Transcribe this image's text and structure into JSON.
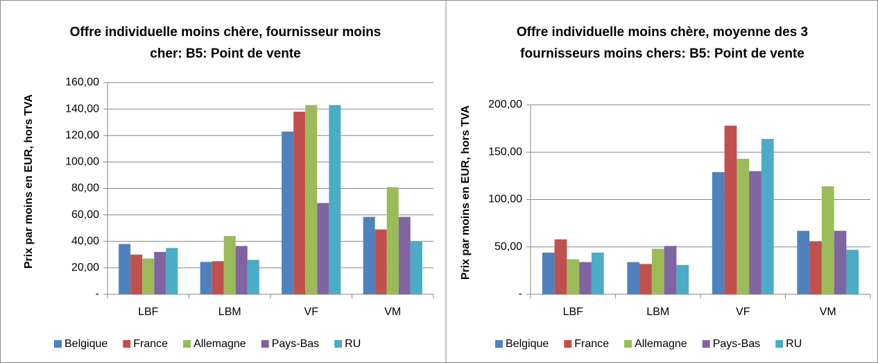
{
  "chart_data": [
    {
      "type": "bar",
      "title": "Offre individuelle moins chère, fournisseur moins cher: B5: Point de vente",
      "y_label": "Prix par moins en EUR, hors TVA",
      "categories": [
        "LBF",
        "LBM",
        "VF",
        "VM"
      ],
      "series": [
        {
          "name": "Belgique",
          "color": "#4f81bd",
          "values": [
            38,
            24.5,
            123,
            58.5
          ]
        },
        {
          "name": "France",
          "color": "#c0504d",
          "values": [
            30,
            25,
            138,
            49
          ]
        },
        {
          "name": "Allemagne",
          "color": "#9bbb59",
          "values": [
            27,
            44,
            143,
            81
          ]
        },
        {
          "name": "Pays-Bas",
          "color": "#8064a2",
          "values": [
            32,
            36.5,
            69,
            58.5
          ]
        },
        {
          "name": "RU",
          "color": "#4bacc6",
          "values": [
            35,
            26,
            143,
            40
          ]
        }
      ],
      "ylim": [
        0,
        160
      ],
      "yticks": [
        {
          "value": 0,
          "label": "-"
        },
        {
          "value": 20,
          "label": "20,00"
        },
        {
          "value": 40,
          "label": "40,00"
        },
        {
          "value": 60,
          "label": "60,00"
        },
        {
          "value": 80,
          "label": "80,00"
        },
        {
          "value": 100,
          "label": "100,00"
        },
        {
          "value": 120,
          "label": "120,00"
        },
        {
          "value": 140,
          "label": "140,00"
        },
        {
          "value": 160,
          "label": "160,00"
        }
      ],
      "grid": true,
      "legend": "bottom"
    },
    {
      "type": "bar",
      "title": "Offre individuelle moins chère, moyenne des 3 fournisseurs moins chers: B5: Point de vente",
      "y_label": "Prix par moins en EUR, hors TVA",
      "categories": [
        "LBF",
        "LBM",
        "VF",
        "VM"
      ],
      "series": [
        {
          "name": "Belgique",
          "color": "#4f81bd",
          "values": [
            44,
            34,
            129,
            67
          ]
        },
        {
          "name": "France",
          "color": "#c0504d",
          "values": [
            58,
            32,
            178,
            56
          ]
        },
        {
          "name": "Allemagne",
          "color": "#9bbb59",
          "values": [
            37,
            48,
            143,
            114
          ]
        },
        {
          "name": "Pays-Bas",
          "color": "#8064a2",
          "values": [
            34,
            51,
            130,
            67
          ]
        },
        {
          "name": "RU",
          "color": "#4bacc6",
          "values": [
            44,
            31,
            164,
            47
          ]
        }
      ],
      "ylim": [
        0,
        200
      ],
      "yticks": [
        {
          "value": 0,
          "label": "-"
        },
        {
          "value": 50,
          "label": "50,00"
        },
        {
          "value": 100,
          "label": "100,00"
        },
        {
          "value": 150,
          "label": "150,00"
        },
        {
          "value": 200,
          "label": "200,00"
        }
      ],
      "grid": true,
      "legend": "bottom"
    }
  ]
}
